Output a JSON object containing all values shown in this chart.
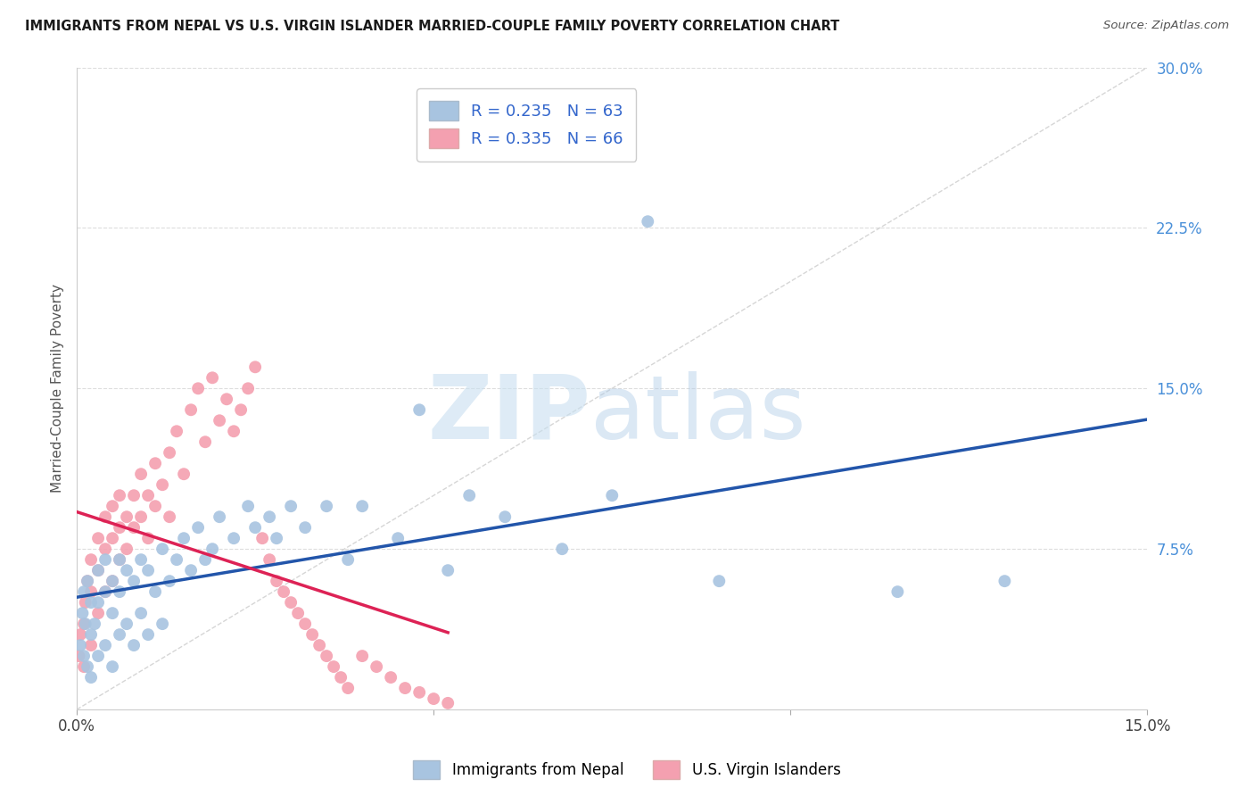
{
  "title": "IMMIGRANTS FROM NEPAL VS U.S. VIRGIN ISLANDER MARRIED-COUPLE FAMILY POVERTY CORRELATION CHART",
  "source": "Source: ZipAtlas.com",
  "ylabel": "Married-Couple Family Poverty",
  "xlim": [
    0.0,
    0.15
  ],
  "ylim": [
    0.0,
    0.3
  ],
  "xtick_positions": [
    0.0,
    0.05,
    0.1,
    0.15
  ],
  "xtick_labels": [
    "0.0%",
    "",
    "",
    "15.0%"
  ],
  "ytick_positions": [
    0.0,
    0.075,
    0.15,
    0.225,
    0.3
  ],
  "ytick_labels_right": [
    "",
    "7.5%",
    "15.0%",
    "22.5%",
    "30.0%"
  ],
  "blue_R": 0.235,
  "blue_N": 63,
  "pink_R": 0.335,
  "pink_N": 66,
  "legend_label_blue": "Immigrants from Nepal",
  "legend_label_pink": "U.S. Virgin Islanders",
  "blue_color": "#a8c4e0",
  "pink_color": "#f4a0b0",
  "blue_line_color": "#2255aa",
  "pink_line_color": "#dd2255",
  "diag_line_color": "#cccccc",
  "watermark_zip": "ZIP",
  "watermark_atlas": "atlas",
  "background_color": "#ffffff",
  "blue_scatter_x": [
    0.0005,
    0.0008,
    0.001,
    0.001,
    0.0012,
    0.0015,
    0.0015,
    0.002,
    0.002,
    0.002,
    0.0025,
    0.003,
    0.003,
    0.003,
    0.004,
    0.004,
    0.004,
    0.005,
    0.005,
    0.005,
    0.006,
    0.006,
    0.006,
    0.007,
    0.007,
    0.008,
    0.008,
    0.009,
    0.009,
    0.01,
    0.01,
    0.011,
    0.012,
    0.012,
    0.013,
    0.014,
    0.015,
    0.016,
    0.017,
    0.018,
    0.019,
    0.02,
    0.022,
    0.024,
    0.025,
    0.027,
    0.028,
    0.03,
    0.032,
    0.035,
    0.038,
    0.04,
    0.045,
    0.048,
    0.052,
    0.055,
    0.06,
    0.068,
    0.075,
    0.08,
    0.09,
    0.115,
    0.13
  ],
  "blue_scatter_y": [
    0.03,
    0.045,
    0.025,
    0.055,
    0.04,
    0.02,
    0.06,
    0.015,
    0.035,
    0.05,
    0.04,
    0.025,
    0.05,
    0.065,
    0.03,
    0.055,
    0.07,
    0.02,
    0.045,
    0.06,
    0.035,
    0.055,
    0.07,
    0.04,
    0.065,
    0.03,
    0.06,
    0.045,
    0.07,
    0.035,
    0.065,
    0.055,
    0.04,
    0.075,
    0.06,
    0.07,
    0.08,
    0.065,
    0.085,
    0.07,
    0.075,
    0.09,
    0.08,
    0.095,
    0.085,
    0.09,
    0.08,
    0.095,
    0.085,
    0.095,
    0.07,
    0.095,
    0.08,
    0.14,
    0.065,
    0.1,
    0.09,
    0.075,
    0.1,
    0.228,
    0.06,
    0.055,
    0.06
  ],
  "pink_scatter_x": [
    0.0003,
    0.0005,
    0.001,
    0.001,
    0.0012,
    0.0015,
    0.002,
    0.002,
    0.002,
    0.003,
    0.003,
    0.003,
    0.004,
    0.004,
    0.004,
    0.005,
    0.005,
    0.005,
    0.006,
    0.006,
    0.006,
    0.007,
    0.007,
    0.008,
    0.008,
    0.009,
    0.009,
    0.01,
    0.01,
    0.011,
    0.011,
    0.012,
    0.013,
    0.013,
    0.014,
    0.015,
    0.016,
    0.017,
    0.018,
    0.019,
    0.02,
    0.021,
    0.022,
    0.023,
    0.024,
    0.025,
    0.026,
    0.027,
    0.028,
    0.029,
    0.03,
    0.031,
    0.032,
    0.033,
    0.034,
    0.035,
    0.036,
    0.037,
    0.038,
    0.04,
    0.042,
    0.044,
    0.046,
    0.048,
    0.05,
    0.052
  ],
  "pink_scatter_y": [
    0.025,
    0.035,
    0.02,
    0.04,
    0.05,
    0.06,
    0.03,
    0.055,
    0.07,
    0.045,
    0.065,
    0.08,
    0.055,
    0.075,
    0.09,
    0.06,
    0.08,
    0.095,
    0.07,
    0.085,
    0.1,
    0.075,
    0.09,
    0.085,
    0.1,
    0.09,
    0.11,
    0.08,
    0.1,
    0.095,
    0.115,
    0.105,
    0.09,
    0.12,
    0.13,
    0.11,
    0.14,
    0.15,
    0.125,
    0.155,
    0.135,
    0.145,
    0.13,
    0.14,
    0.15,
    0.16,
    0.08,
    0.07,
    0.06,
    0.055,
    0.05,
    0.045,
    0.04,
    0.035,
    0.03,
    0.025,
    0.02,
    0.015,
    0.01,
    0.025,
    0.02,
    0.015,
    0.01,
    0.008,
    0.005,
    0.003
  ]
}
